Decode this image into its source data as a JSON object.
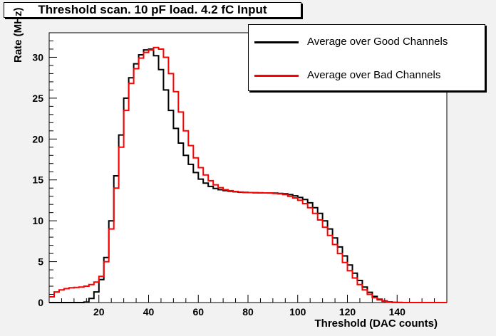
{
  "chart_data": {
    "type": "line",
    "title": "Threshold scan. 10 pF load. 4.2 fC Input",
    "xlabel": "Threshold (DAC counts)",
    "ylabel": "Rate (MHz)",
    "xlim": [
      0,
      160
    ],
    "ylim": [
      0,
      33
    ],
    "x_ticks": [
      20,
      40,
      60,
      80,
      100,
      120,
      140
    ],
    "y_ticks": [
      0,
      5,
      10,
      15,
      20,
      25,
      30
    ],
    "grid": false,
    "legend_placement": "top-right",
    "step": true,
    "x": [
      0,
      2,
      4,
      6,
      8,
      10,
      12,
      14,
      16,
      18,
      20,
      22,
      24,
      26,
      28,
      30,
      32,
      34,
      36,
      38,
      40,
      42,
      44,
      46,
      48,
      50,
      52,
      54,
      56,
      58,
      60,
      62,
      64,
      66,
      68,
      70,
      72,
      74,
      76,
      78,
      80,
      82,
      84,
      86,
      88,
      90,
      92,
      94,
      96,
      98,
      100,
      102,
      104,
      106,
      108,
      110,
      112,
      114,
      116,
      118,
      120,
      122,
      124,
      126,
      128,
      130,
      132,
      134,
      136,
      138,
      140,
      142,
      144,
      146,
      148,
      150,
      152,
      154,
      156,
      158,
      160
    ],
    "series": [
      {
        "name": "Average over Good Channels",
        "color": "#000000",
        "values": [
          0,
          0,
          0,
          0,
          0,
          0,
          0,
          0.05,
          0.5,
          1.3,
          2.8,
          5.5,
          10,
          15.5,
          20.5,
          25,
          27.5,
          29.2,
          30.3,
          30.9,
          31,
          30.2,
          28.5,
          26,
          23.5,
          21.3,
          19.5,
          18,
          16.9,
          15.9,
          15.1,
          14.6,
          14.2,
          13.95,
          13.8,
          13.7,
          13.62,
          13.55,
          13.5,
          13.48,
          13.45,
          13.43,
          13.42,
          13.41,
          13.4,
          13.38,
          13.35,
          13.3,
          13.2,
          13.05,
          12.85,
          12.6,
          12.2,
          11.6,
          10.9,
          10,
          9,
          7.9,
          6.8,
          5.7,
          4.6,
          3.6,
          2.7,
          1.9,
          1.25,
          0.75,
          0.4,
          0.2,
          0.08,
          0.03,
          0.01,
          0,
          0,
          0,
          0,
          0,
          0,
          0,
          0,
          0,
          0
        ]
      },
      {
        "name": "Average over Bad Channels",
        "color": "#ff0000",
        "values": [
          0.7,
          1.3,
          1.55,
          1.7,
          1.8,
          1.85,
          1.9,
          2.0,
          2.2,
          2.5,
          3.2,
          5,
          9,
          14,
          19,
          23.5,
          26.8,
          28.6,
          29.9,
          30.6,
          30.9,
          31.2,
          31,
          30,
          28,
          25.8,
          23.3,
          21,
          19.2,
          17.7,
          16.5,
          15.6,
          14.9,
          14.4,
          14.05,
          13.8,
          13.68,
          13.58,
          13.52,
          13.48,
          13.45,
          13.43,
          13.42,
          13.41,
          13.4,
          13.35,
          13.3,
          13.2,
          13,
          12.8,
          12.5,
          12.1,
          11.6,
          10.9,
          10.1,
          9.2,
          8.2,
          7.1,
          6,
          4.9,
          3.9,
          3,
          2.2,
          1.55,
          1,
          0.6,
          0.32,
          0.16,
          0.07,
          0.03,
          0.01,
          0,
          0,
          0,
          0,
          0,
          0,
          0,
          0,
          0,
          0
        ]
      }
    ]
  }
}
